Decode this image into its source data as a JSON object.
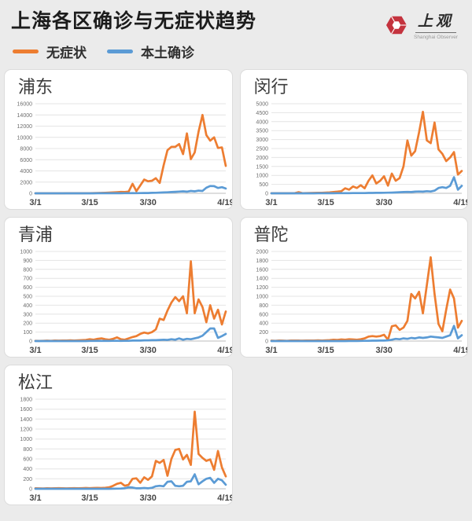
{
  "header": {
    "title": "上海各区确诊与无症状趋势",
    "logo": {
      "text": "上观",
      "subtext": "Shanghai Observer",
      "icon_color": "#c4333e"
    }
  },
  "legend": {
    "series": [
      {
        "key": "asymptomatic",
        "label": "无症状",
        "color": "#ED7D31"
      },
      {
        "key": "confirmed",
        "label": "本土确诊",
        "color": "#5B9BD5"
      }
    ]
  },
  "colors": {
    "page_background": "#ebebeb",
    "card_background": "#ffffff",
    "gridline": "#e4e4e4",
    "axis_line": "#bdbdbd",
    "y_tick_text": "#6e6e6e",
    "x_tick_text": "#454545"
  },
  "chart_data": [
    {
      "type": "line",
      "title": "浦东",
      "x_tick_labels": [
        "3/1",
        "3/15",
        "3/30",
        "4/19"
      ],
      "x_tick_days": [
        0,
        14,
        29,
        49
      ],
      "x_range_days": 50,
      "ylim": [
        0,
        16000
      ],
      "ytick_step": 2000,
      "grid": true,
      "legend_position": "none",
      "series": [
        {
          "key": "asymptomatic",
          "name": "无症状",
          "color": "#ED7D31",
          "values": [
            2,
            1,
            2,
            3,
            2,
            4,
            5,
            6,
            8,
            10,
            12,
            15,
            18,
            22,
            30,
            40,
            55,
            75,
            100,
            130,
            160,
            200,
            250,
            220,
            300,
            1700,
            400,
            1400,
            2450,
            2150,
            2250,
            2700,
            1850,
            5000,
            7700,
            8300,
            8300,
            8800,
            7000,
            10700,
            6100,
            7300,
            11000,
            14000,
            10400,
            9400,
            10000,
            8100,
            8200,
            4900
          ]
        },
        {
          "key": "confirmed",
          "name": "本土确诊",
          "color": "#5B9BD5",
          "values": [
            0,
            0,
            0,
            0,
            0,
            0,
            0,
            0,
            0,
            0,
            0,
            0,
            0,
            5,
            5,
            5,
            8,
            10,
            10,
            12,
            15,
            18,
            20,
            25,
            30,
            40,
            30,
            45,
            60,
            55,
            80,
            100,
            120,
            150,
            180,
            220,
            260,
            310,
            350,
            300,
            420,
            350,
            480,
            420,
            1000,
            1300,
            1280,
            950,
            1100,
            850
          ]
        }
      ]
    },
    {
      "type": "line",
      "title": "闵行",
      "x_tick_labels": [
        "3/1",
        "3/15",
        "3/30",
        "4/19"
      ],
      "x_tick_days": [
        0,
        14,
        29,
        49
      ],
      "x_range_days": 50,
      "ylim": [
        0,
        5000
      ],
      "ytick_step": 500,
      "grid": true,
      "legend_position": "none",
      "series": [
        {
          "key": "asymptomatic",
          "name": "无症状",
          "color": "#ED7D31",
          "values": [
            5,
            3,
            4,
            6,
            5,
            8,
            10,
            60,
            10,
            15,
            18,
            20,
            25,
            30,
            40,
            50,
            70,
            90,
            120,
            280,
            200,
            380,
            300,
            450,
            280,
            700,
            1000,
            550,
            700,
            950,
            430,
            1100,
            700,
            850,
            1500,
            2950,
            2100,
            2350,
            3400,
            4550,
            2950,
            2800,
            3950,
            2450,
            2200,
            1800,
            2000,
            2300,
            1050,
            1250
          ]
        },
        {
          "key": "confirmed",
          "name": "本土确诊",
          "color": "#5B9BD5",
          "values": [
            0,
            0,
            0,
            0,
            0,
            0,
            0,
            0,
            0,
            0,
            2,
            2,
            3,
            3,
            5,
            5,
            5,
            8,
            8,
            10,
            10,
            12,
            12,
            15,
            15,
            20,
            20,
            25,
            25,
            30,
            35,
            40,
            50,
            60,
            70,
            80,
            70,
            90,
            100,
            90,
            120,
            100,
            150,
            300,
            340,
            300,
            420,
            900,
            200,
            420
          ]
        }
      ]
    },
    {
      "type": "line",
      "title": "青浦",
      "x_tick_labels": [
        "3/1",
        "3/15",
        "3/30",
        "4/19"
      ],
      "x_tick_days": [
        0,
        14,
        29,
        49
      ],
      "x_range_days": 50,
      "ylim": [
        0,
        1000
      ],
      "ytick_step": 100,
      "grid": true,
      "legend_position": "none",
      "series": [
        {
          "key": "asymptomatic",
          "name": "无症状",
          "color": "#ED7D31",
          "values": [
            3,
            2,
            3,
            4,
            3,
            5,
            4,
            6,
            5,
            8,
            6,
            8,
            10,
            12,
            20,
            15,
            25,
            30,
            20,
            15,
            25,
            40,
            20,
            15,
            30,
            45,
            55,
            80,
            95,
            85,
            100,
            130,
            250,
            235,
            340,
            430,
            490,
            445,
            500,
            310,
            890,
            310,
            465,
            380,
            210,
            400,
            250,
            350,
            185,
            330
          ]
        },
        {
          "key": "confirmed",
          "name": "本土确诊",
          "color": "#5B9BD5",
          "values": [
            0,
            0,
            0,
            0,
            0,
            0,
            0,
            0,
            0,
            0,
            0,
            0,
            0,
            0,
            2,
            2,
            3,
            2,
            3,
            2,
            3,
            3,
            2,
            3,
            3,
            5,
            5,
            5,
            8,
            8,
            10,
            10,
            12,
            15,
            12,
            20,
            15,
            30,
            15,
            25,
            20,
            30,
            40,
            60,
            100,
            140,
            140,
            35,
            55,
            80
          ]
        }
      ]
    },
    {
      "type": "line",
      "title": "普陀",
      "x_tick_labels": [
        "3/1",
        "3/15",
        "3/30",
        "4/19"
      ],
      "x_tick_days": [
        0,
        14,
        29,
        49
      ],
      "x_range_days": 50,
      "ylim": [
        0,
        2000
      ],
      "ytick_step": 200,
      "grid": true,
      "legend_position": "none",
      "series": [
        {
          "key": "asymptomatic",
          "name": "无症状",
          "color": "#ED7D31",
          "values": [
            8,
            5,
            10,
            8,
            6,
            10,
            12,
            10,
            8,
            12,
            10,
            12,
            15,
            12,
            15,
            20,
            30,
            25,
            35,
            30,
            40,
            35,
            30,
            40,
            60,
            100,
            110,
            100,
            110,
            140,
            30,
            330,
            350,
            250,
            300,
            450,
            1050,
            950,
            1100,
            620,
            1250,
            1870,
            1050,
            380,
            220,
            700,
            1150,
            950,
            300,
            450
          ]
        },
        {
          "key": "confirmed",
          "name": "本土确诊",
          "color": "#5B9BD5",
          "values": [
            0,
            0,
            0,
            0,
            0,
            0,
            0,
            0,
            0,
            0,
            0,
            0,
            0,
            0,
            0,
            0,
            0,
            0,
            0,
            0,
            2,
            3,
            2,
            3,
            5,
            5,
            8,
            8,
            10,
            10,
            15,
            30,
            50,
            40,
            60,
            50,
            70,
            60,
            80,
            70,
            80,
            100,
            90,
            80,
            70,
            100,
            130,
            340,
            60,
            130
          ]
        }
      ]
    },
    {
      "type": "line",
      "title": "松江",
      "x_tick_labels": [
        "3/1",
        "3/15",
        "3/30",
        "4/19"
      ],
      "x_tick_days": [
        0,
        14,
        29,
        49
      ],
      "x_range_days": 50,
      "ylim": [
        0,
        1800
      ],
      "ytick_step": 200,
      "grid": true,
      "legend_position": "none",
      "series": [
        {
          "key": "asymptomatic",
          "name": "无症状",
          "color": "#ED7D31",
          "values": [
            10,
            8,
            6,
            10,
            8,
            10,
            12,
            10,
            8,
            10,
            12,
            10,
            12,
            15,
            12,
            15,
            18,
            15,
            20,
            30,
            60,
            100,
            120,
            60,
            80,
            200,
            210,
            120,
            230,
            180,
            250,
            560,
            520,
            580,
            260,
            600,
            780,
            800,
            590,
            680,
            480,
            1550,
            700,
            620,
            560,
            590,
            380,
            760,
            430,
            250
          ]
        },
        {
          "key": "confirmed",
          "name": "本土确诊",
          "color": "#5B9BD5",
          "values": [
            0,
            0,
            0,
            0,
            0,
            0,
            0,
            0,
            0,
            0,
            0,
            0,
            0,
            0,
            0,
            0,
            0,
            0,
            0,
            0,
            2,
            3,
            5,
            10,
            30,
            25,
            10,
            10,
            15,
            10,
            20,
            50,
            60,
            50,
            140,
            150,
            60,
            50,
            60,
            140,
            150,
            290,
            90,
            150,
            200,
            220,
            120,
            200,
            170,
            80
          ]
        }
      ]
    }
  ]
}
